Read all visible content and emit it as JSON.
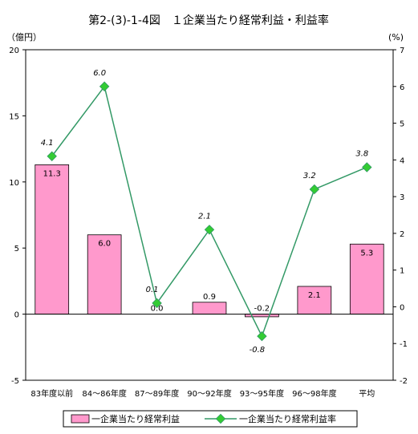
{
  "chart_data": {
    "type": "bar",
    "title": "第2-(3)-1-4図　１企業当たり経常利益・利益率",
    "left_unit": "（億円）",
    "right_unit": "(%)",
    "categories": [
      "83年度以前",
      "84～86年度",
      "87～89年度",
      "90～92年度",
      "93～95年度",
      "96～98年度",
      "平均"
    ],
    "series": [
      {
        "name": "一企業当たり経常利益",
        "type": "bar",
        "axis": "left",
        "color": "#ff99cc",
        "values": [
          11.3,
          6.0,
          0.0,
          0.9,
          -0.2,
          2.1,
          5.3
        ],
        "labels": [
          "11.3",
          "6.0",
          "0.0",
          "0.9",
          "-0.2",
          "2.1",
          "5.3"
        ]
      },
      {
        "name": "一企業当たり経常利益率",
        "type": "line",
        "axis": "right",
        "color": "#339966",
        "marker_color": "#33cc33",
        "values": [
          4.1,
          6.0,
          0.1,
          2.1,
          -0.8,
          3.2,
          3.8
        ],
        "labels": [
          "4.1",
          "6.0",
          "0.1",
          "2.1",
          "-0.8",
          "3.2",
          "3.8"
        ]
      }
    ],
    "left_axis": {
      "min": -5,
      "max": 20,
      "step": 5,
      "ticks": [
        "-5",
        "0",
        "5",
        "10",
        "15",
        "20"
      ]
    },
    "right_axis": {
      "min": -2,
      "max": 7,
      "step": 1,
      "ticks": [
        "-2",
        "-1",
        "0",
        "1",
        "2",
        "3",
        "4",
        "5",
        "6",
        "7"
      ]
    },
    "grid": false,
    "legend_position": "bottom"
  }
}
